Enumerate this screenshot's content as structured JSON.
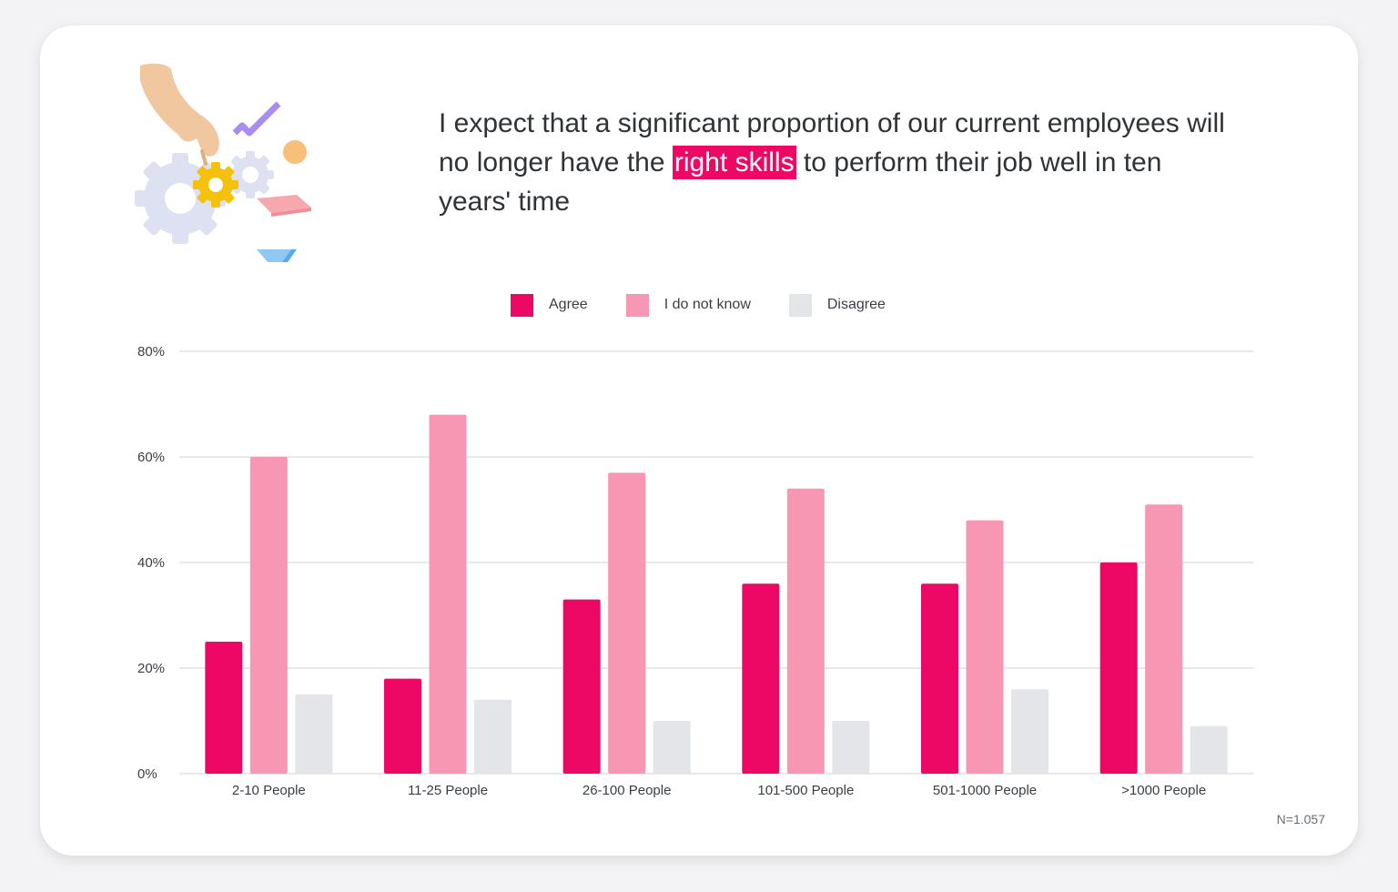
{
  "title": {
    "before": "I expect that a significant proportion of our current employees will no longer have the ",
    "highlight": "right skills",
    "after": " to perform their job well in ten years' time"
  },
  "footnote": "N=1.057",
  "colors": {
    "agree": "#ee0866",
    "dont_know": "#f797b4",
    "disagree": "#e4e5e8",
    "grid": "#d9dbde",
    "highlight": "#ee0866"
  },
  "chart_data": {
    "type": "bar",
    "categories": [
      "2-10  People",
      "11-25 People",
      "26-100 People",
      "101-500 People",
      "501-1000 People",
      ">1000 People"
    ],
    "series": [
      {
        "name": "Agree",
        "values": [
          25,
          18,
          33,
          36,
          36,
          40
        ]
      },
      {
        "name": "I do not know",
        "values": [
          60,
          68,
          57,
          54,
          48,
          51
        ]
      },
      {
        "name": "Disagree",
        "values": [
          15,
          14,
          10,
          10,
          16,
          9
        ]
      }
    ],
    "yticks": [
      "0%",
      "20%",
      "40%",
      "60%",
      "80%"
    ],
    "ylim": [
      0,
      80
    ],
    "grid": true,
    "legend": "top-center"
  }
}
